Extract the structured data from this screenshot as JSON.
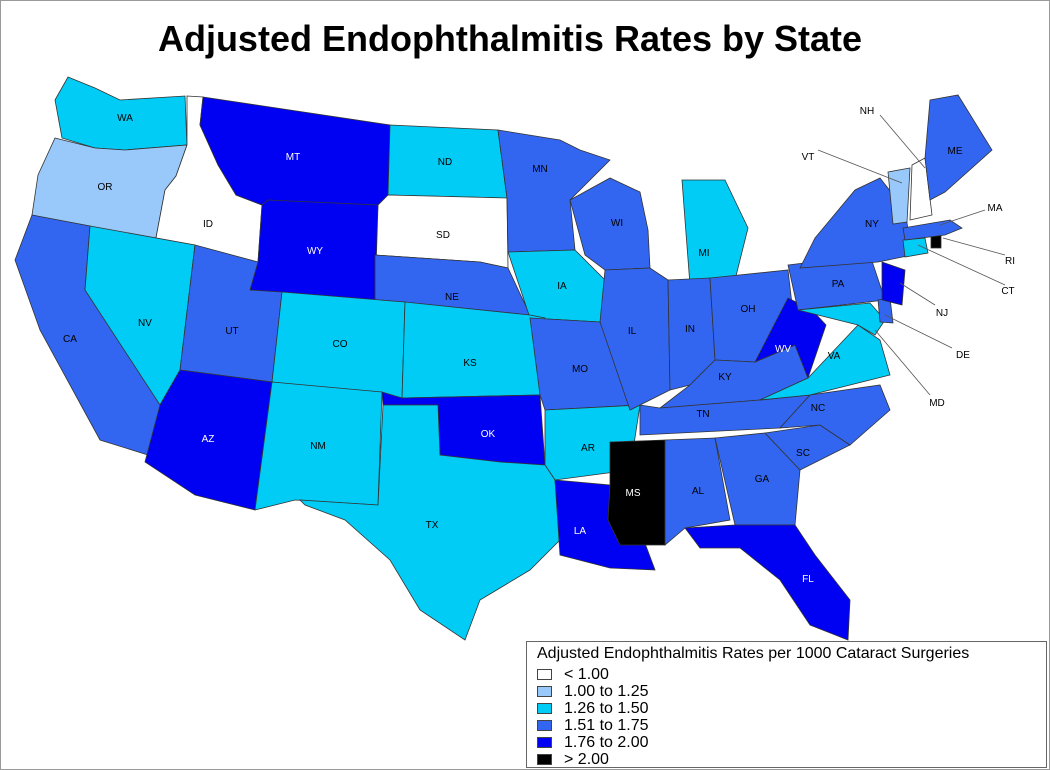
{
  "title": "Adjusted Endophthalmitis Rates by State",
  "legend": {
    "title": "Adjusted Endophthalmitis Rates per 1000 Cataract Surgeries",
    "items": [
      {
        "label": "< 1.00",
        "color": "#ffffff"
      },
      {
        "label": "1.00 to 1.25",
        "color": "#99c9fa"
      },
      {
        "label": "1.26 to 1.50",
        "color": "#00ccf5"
      },
      {
        "label": "1.51 to 1.75",
        "color": "#3366f0"
      },
      {
        "label": "1.76 to 2.00",
        "color": "#0000f2"
      },
      {
        "label": "> 2.00",
        "color": "#000000"
      }
    ]
  },
  "states": [
    {
      "abbr": "WA",
      "category": 2
    },
    {
      "abbr": "OR",
      "category": 1
    },
    {
      "abbr": "ID",
      "category": 0
    },
    {
      "abbr": "MT",
      "category": 4
    },
    {
      "abbr": "ND",
      "category": 2
    },
    {
      "abbr": "SD",
      "category": 0
    },
    {
      "abbr": "MN",
      "category": 3
    },
    {
      "abbr": "WY",
      "category": 4
    },
    {
      "abbr": "NE",
      "category": 3
    },
    {
      "abbr": "IA",
      "category": 2
    },
    {
      "abbr": "CA",
      "category": 3
    },
    {
      "abbr": "NV",
      "category": 2
    },
    {
      "abbr": "UT",
      "category": 3
    },
    {
      "abbr": "CO",
      "category": 2
    },
    {
      "abbr": "KS",
      "category": 2
    },
    {
      "abbr": "MO",
      "category": 3
    },
    {
      "abbr": "AZ",
      "category": 4
    },
    {
      "abbr": "NM",
      "category": 2
    },
    {
      "abbr": "OK",
      "category": 4
    },
    {
      "abbr": "AR",
      "category": 2
    },
    {
      "abbr": "TX",
      "category": 2
    },
    {
      "abbr": "LA",
      "category": 4
    },
    {
      "abbr": "WI",
      "category": 3
    },
    {
      "abbr": "MI",
      "category": 2
    },
    {
      "abbr": "IL",
      "category": 3
    },
    {
      "abbr": "IN",
      "category": 3
    },
    {
      "abbr": "OH",
      "category": 3
    },
    {
      "abbr": "KY",
      "category": 3
    },
    {
      "abbr": "TN",
      "category": 3
    },
    {
      "abbr": "MS",
      "category": 5
    },
    {
      "abbr": "AL",
      "category": 3
    },
    {
      "abbr": "GA",
      "category": 3
    },
    {
      "abbr": "FL",
      "category": 4
    },
    {
      "abbr": "SC",
      "category": 3
    },
    {
      "abbr": "NC",
      "category": 3
    },
    {
      "abbr": "VA",
      "category": 2
    },
    {
      "abbr": "WV",
      "category": 4
    },
    {
      "abbr": "PA",
      "category": 3
    },
    {
      "abbr": "NY",
      "category": 3
    },
    {
      "abbr": "MD",
      "category": 2
    },
    {
      "abbr": "DE",
      "category": 3
    },
    {
      "abbr": "NJ",
      "category": 4
    },
    {
      "abbr": "CT",
      "category": 2
    },
    {
      "abbr": "RI",
      "category": 5
    },
    {
      "abbr": "MA",
      "category": 3
    },
    {
      "abbr": "VT",
      "category": 1
    },
    {
      "abbr": "NH",
      "category": 0
    },
    {
      "abbr": "ME",
      "category": 3
    }
  ]
}
